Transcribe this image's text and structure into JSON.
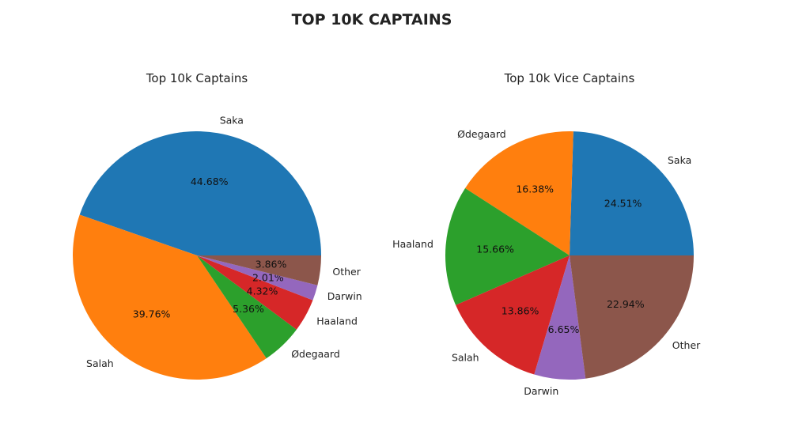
{
  "figure": {
    "title": "TOP 10K CAPTAINS"
  },
  "chart_data": [
    {
      "type": "pie",
      "title": "Top 10k Captains",
      "labels": [
        "Saka",
        "Salah",
        "Ødegaard",
        "Haaland",
        "Darwin",
        "Other"
      ],
      "values": [
        44.68,
        39.76,
        5.36,
        4.32,
        2.01,
        3.86
      ],
      "value_labels": [
        "44.68%",
        "39.76%",
        "5.36%",
        "4.32%",
        "2.01%",
        "3.86%"
      ],
      "colors": [
        "#1f77b4",
        "#ff7f0e",
        "#2ca02c",
        "#d62728",
        "#9467bd",
        "#8c564b"
      ],
      "start_angle_deg": 0,
      "direction": "counterclockwise"
    },
    {
      "type": "pie",
      "title": "Top 10k Vice Captains",
      "labels": [
        "Saka",
        "Ødegaard",
        "Haaland",
        "Salah",
        "Darwin",
        "Other"
      ],
      "values": [
        24.51,
        16.38,
        15.66,
        13.86,
        6.65,
        22.94
      ],
      "value_labels": [
        "24.51%",
        "16.38%",
        "15.66%",
        "13.86%",
        "6.65%",
        "22.94%"
      ],
      "colors": [
        "#1f77b4",
        "#ff7f0e",
        "#2ca02c",
        "#d62728",
        "#9467bd",
        "#8c564b"
      ],
      "start_angle_deg": 0,
      "direction": "counterclockwise"
    }
  ]
}
